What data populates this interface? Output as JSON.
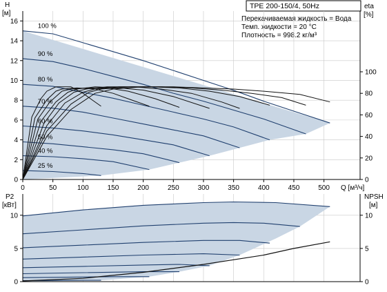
{
  "header": {
    "title": "TPE 200-150/4, 50Hz",
    "info": [
      "Перекачиваемая жидкость = Вода",
      "Темп. жидкости = 20 °C",
      "Плотность = 998.2 кг/м³"
    ]
  },
  "chart_data": [
    {
      "type": "line",
      "name": "qh",
      "ylabel": "H",
      "yunit": "[м]",
      "y2label": "eta",
      "y2unit": "[%]",
      "xlabel": "Q [м³/ч]",
      "xlim": [
        0,
        560
      ],
      "ylim": [
        0,
        17
      ],
      "y2lim": [
        0,
        100
      ],
      "xticks": [
        0,
        50,
        100,
        150,
        200,
        250,
        300,
        350,
        400,
        450,
        500
      ],
      "yticks": [
        0,
        2,
        4,
        6,
        8,
        10,
        12,
        14,
        16
      ],
      "y2ticks": [
        0,
        20,
        40,
        60,
        80,
        100
      ],
      "grid": true,
      "series": [
        {
          "name": "100 %",
          "x": [
            0,
            50,
            100,
            150,
            200,
            250,
            300,
            350,
            400,
            450,
            510
          ],
          "y": [
            15.0,
            14.7,
            13.8,
            12.9,
            12.0,
            11.0,
            10.0,
            9.0,
            7.9,
            6.9,
            5.7
          ]
        },
        {
          "name": "90 %",
          "x": [
            0,
            50,
            100,
            150,
            200,
            250,
            300,
            350,
            400,
            470
          ],
          "y": [
            12.2,
            11.9,
            11.2,
            10.4,
            9.6,
            8.7,
            7.9,
            7.0,
            6.1,
            4.6
          ]
        },
        {
          "name": "80 %",
          "x": [
            0,
            50,
            100,
            150,
            200,
            250,
            300,
            350,
            410
          ],
          "y": [
            9.6,
            9.4,
            8.8,
            8.2,
            7.5,
            6.8,
            6.1,
            5.3,
            4.0
          ]
        },
        {
          "name": "70 %",
          "x": [
            0,
            50,
            100,
            150,
            200,
            250,
            300,
            360
          ],
          "y": [
            7.4,
            7.2,
            6.8,
            6.2,
            5.6,
            5.0,
            4.4,
            3.2
          ]
        },
        {
          "name": "60 %",
          "x": [
            0,
            50,
            100,
            150,
            200,
            250,
            310
          ],
          "y": [
            5.4,
            5.2,
            4.9,
            4.5,
            4.0,
            3.5,
            2.4
          ]
        },
        {
          "name": "50 %",
          "x": [
            0,
            50,
            100,
            150,
            200,
            260
          ],
          "y": [
            3.8,
            3.6,
            3.3,
            3.0,
            2.6,
            1.7
          ]
        },
        {
          "name": "40 %",
          "x": [
            0,
            50,
            100,
            150,
            210
          ],
          "y": [
            2.4,
            2.3,
            2.1,
            1.8,
            1.0
          ]
        },
        {
          "name": "25 %",
          "x": [
            0,
            50,
            100,
            130
          ],
          "y": [
            0.9,
            0.8,
            0.6,
            0.4
          ]
        }
      ],
      "envelope": {
        "x": [
          0,
          510,
          510,
          470,
          410,
          360,
          310,
          260,
          210,
          130,
          0
        ],
        "y": [
          15.0,
          5.7,
          5.7,
          4.6,
          4.0,
          3.2,
          2.4,
          1.7,
          1.0,
          0.4,
          0.0
        ]
      },
      "eta_series": [
        {
          "x": [
            0,
            40,
            80,
            120,
            150,
            200,
            250,
            300,
            350,
            400,
            460,
            510
          ],
          "y": [
            0,
            40,
            65,
            80,
            84,
            86,
            86,
            85,
            84,
            82,
            79,
            72
          ]
        },
        {
          "x": [
            0,
            40,
            80,
            110,
            130,
            180,
            230,
            280,
            330,
            380,
            430,
            470
          ],
          "y": [
            0,
            45,
            70,
            81,
            84,
            86,
            86,
            85,
            83,
            80,
            76,
            69
          ]
        },
        {
          "x": [
            0,
            40,
            70,
            100,
            120,
            160,
            210,
            260,
            310,
            360,
            410
          ],
          "y": [
            0,
            50,
            71,
            81,
            84,
            86,
            86,
            85,
            82,
            77,
            69
          ]
        },
        {
          "x": [
            0,
            35,
            60,
            85,
            105,
            140,
            185,
            230,
            280,
            330,
            360
          ],
          "y": [
            0,
            52,
            71,
            81,
            84,
            86,
            86,
            84,
            80,
            72,
            66
          ]
        },
        {
          "x": [
            0,
            30,
            55,
            75,
            90,
            120,
            160,
            200,
            250,
            310
          ],
          "y": [
            0,
            54,
            72,
            81,
            84,
            86,
            85,
            83,
            77,
            66
          ]
        },
        {
          "x": [
            0,
            25,
            45,
            65,
            80,
            105,
            140,
            175,
            220,
            260
          ],
          "y": [
            0,
            56,
            72,
            82,
            84,
            85,
            85,
            82,
            75,
            67
          ]
        },
        {
          "x": [
            0,
            20,
            40,
            55,
            65,
            90,
            120,
            150,
            180,
            210
          ],
          "y": [
            0,
            57,
            74,
            82,
            84,
            85,
            84,
            80,
            74,
            68
          ]
        },
        {
          "x": [
            0,
            15,
            30,
            40,
            55,
            80,
            100,
            115,
            130
          ],
          "y": [
            0,
            58,
            75,
            82,
            86,
            86,
            80,
            74,
            68
          ]
        }
      ]
    },
    {
      "type": "line",
      "name": "power",
      "ylabel": "P2",
      "yunit": "[кВт]",
      "y2label": "NPSH",
      "y2unit": "[м]",
      "xlim": [
        0,
        560
      ],
      "ylim": [
        0,
        13.2
      ],
      "y2lim": [
        0,
        13.2
      ],
      "yticks": [
        0,
        5,
        10
      ],
      "y2ticks": [
        0,
        5,
        10
      ],
      "grid": true,
      "series": [
        {
          "name": "100 %",
          "x": [
            0,
            100,
            200,
            300,
            350,
            420,
            510
          ],
          "y": [
            9.9,
            10.8,
            11.5,
            11.9,
            12.0,
            11.9,
            11.3
          ]
        },
        {
          "name": "90 %",
          "x": [
            0,
            100,
            200,
            300,
            350,
            400,
            460
          ],
          "y": [
            7.2,
            7.8,
            8.4,
            8.8,
            8.9,
            8.8,
            8.3
          ]
        },
        {
          "name": "80 %",
          "x": [
            0,
            100,
            200,
            300,
            360,
            410
          ],
          "y": [
            5.1,
            5.5,
            5.9,
            6.2,
            6.2,
            5.8
          ]
        },
        {
          "name": "70 %",
          "x": [
            0,
            100,
            200,
            300,
            360
          ],
          "y": [
            3.4,
            3.7,
            4.0,
            4.2,
            4.0
          ]
        },
        {
          "name": "60 %",
          "x": [
            0,
            100,
            200,
            260,
            310
          ],
          "y": [
            2.1,
            2.3,
            2.5,
            2.6,
            2.4
          ]
        },
        {
          "name": "50 %",
          "x": [
            0,
            100,
            200,
            260
          ],
          "y": [
            1.2,
            1.35,
            1.5,
            1.5
          ]
        },
        {
          "name": "40 %",
          "x": [
            0,
            100,
            150,
            210
          ],
          "y": [
            0.6,
            0.7,
            0.75,
            0.75
          ]
        },
        {
          "name": "25 %",
          "x": [
            0,
            60,
            100,
            130
          ],
          "y": [
            0.15,
            0.18,
            0.2,
            0.2
          ]
        }
      ],
      "envelope": {
        "x": [
          0,
          100,
          200,
          300,
          350,
          420,
          510,
          460,
          420,
          360,
          310,
          260,
          210,
          130,
          0
        ],
        "y": [
          9.9,
          10.8,
          11.5,
          11.9,
          12.0,
          11.9,
          11.3,
          8.3,
          6.5,
          4.0,
          2.4,
          1.5,
          0.75,
          0.2,
          0.0
        ]
      },
      "npsh": {
        "x": [
          0,
          100,
          200,
          300,
          400,
          450,
          510
        ],
        "y": [
          0.1,
          0.5,
          1.4,
          2.6,
          4.0,
          5.0,
          6.0
        ]
      }
    }
  ]
}
